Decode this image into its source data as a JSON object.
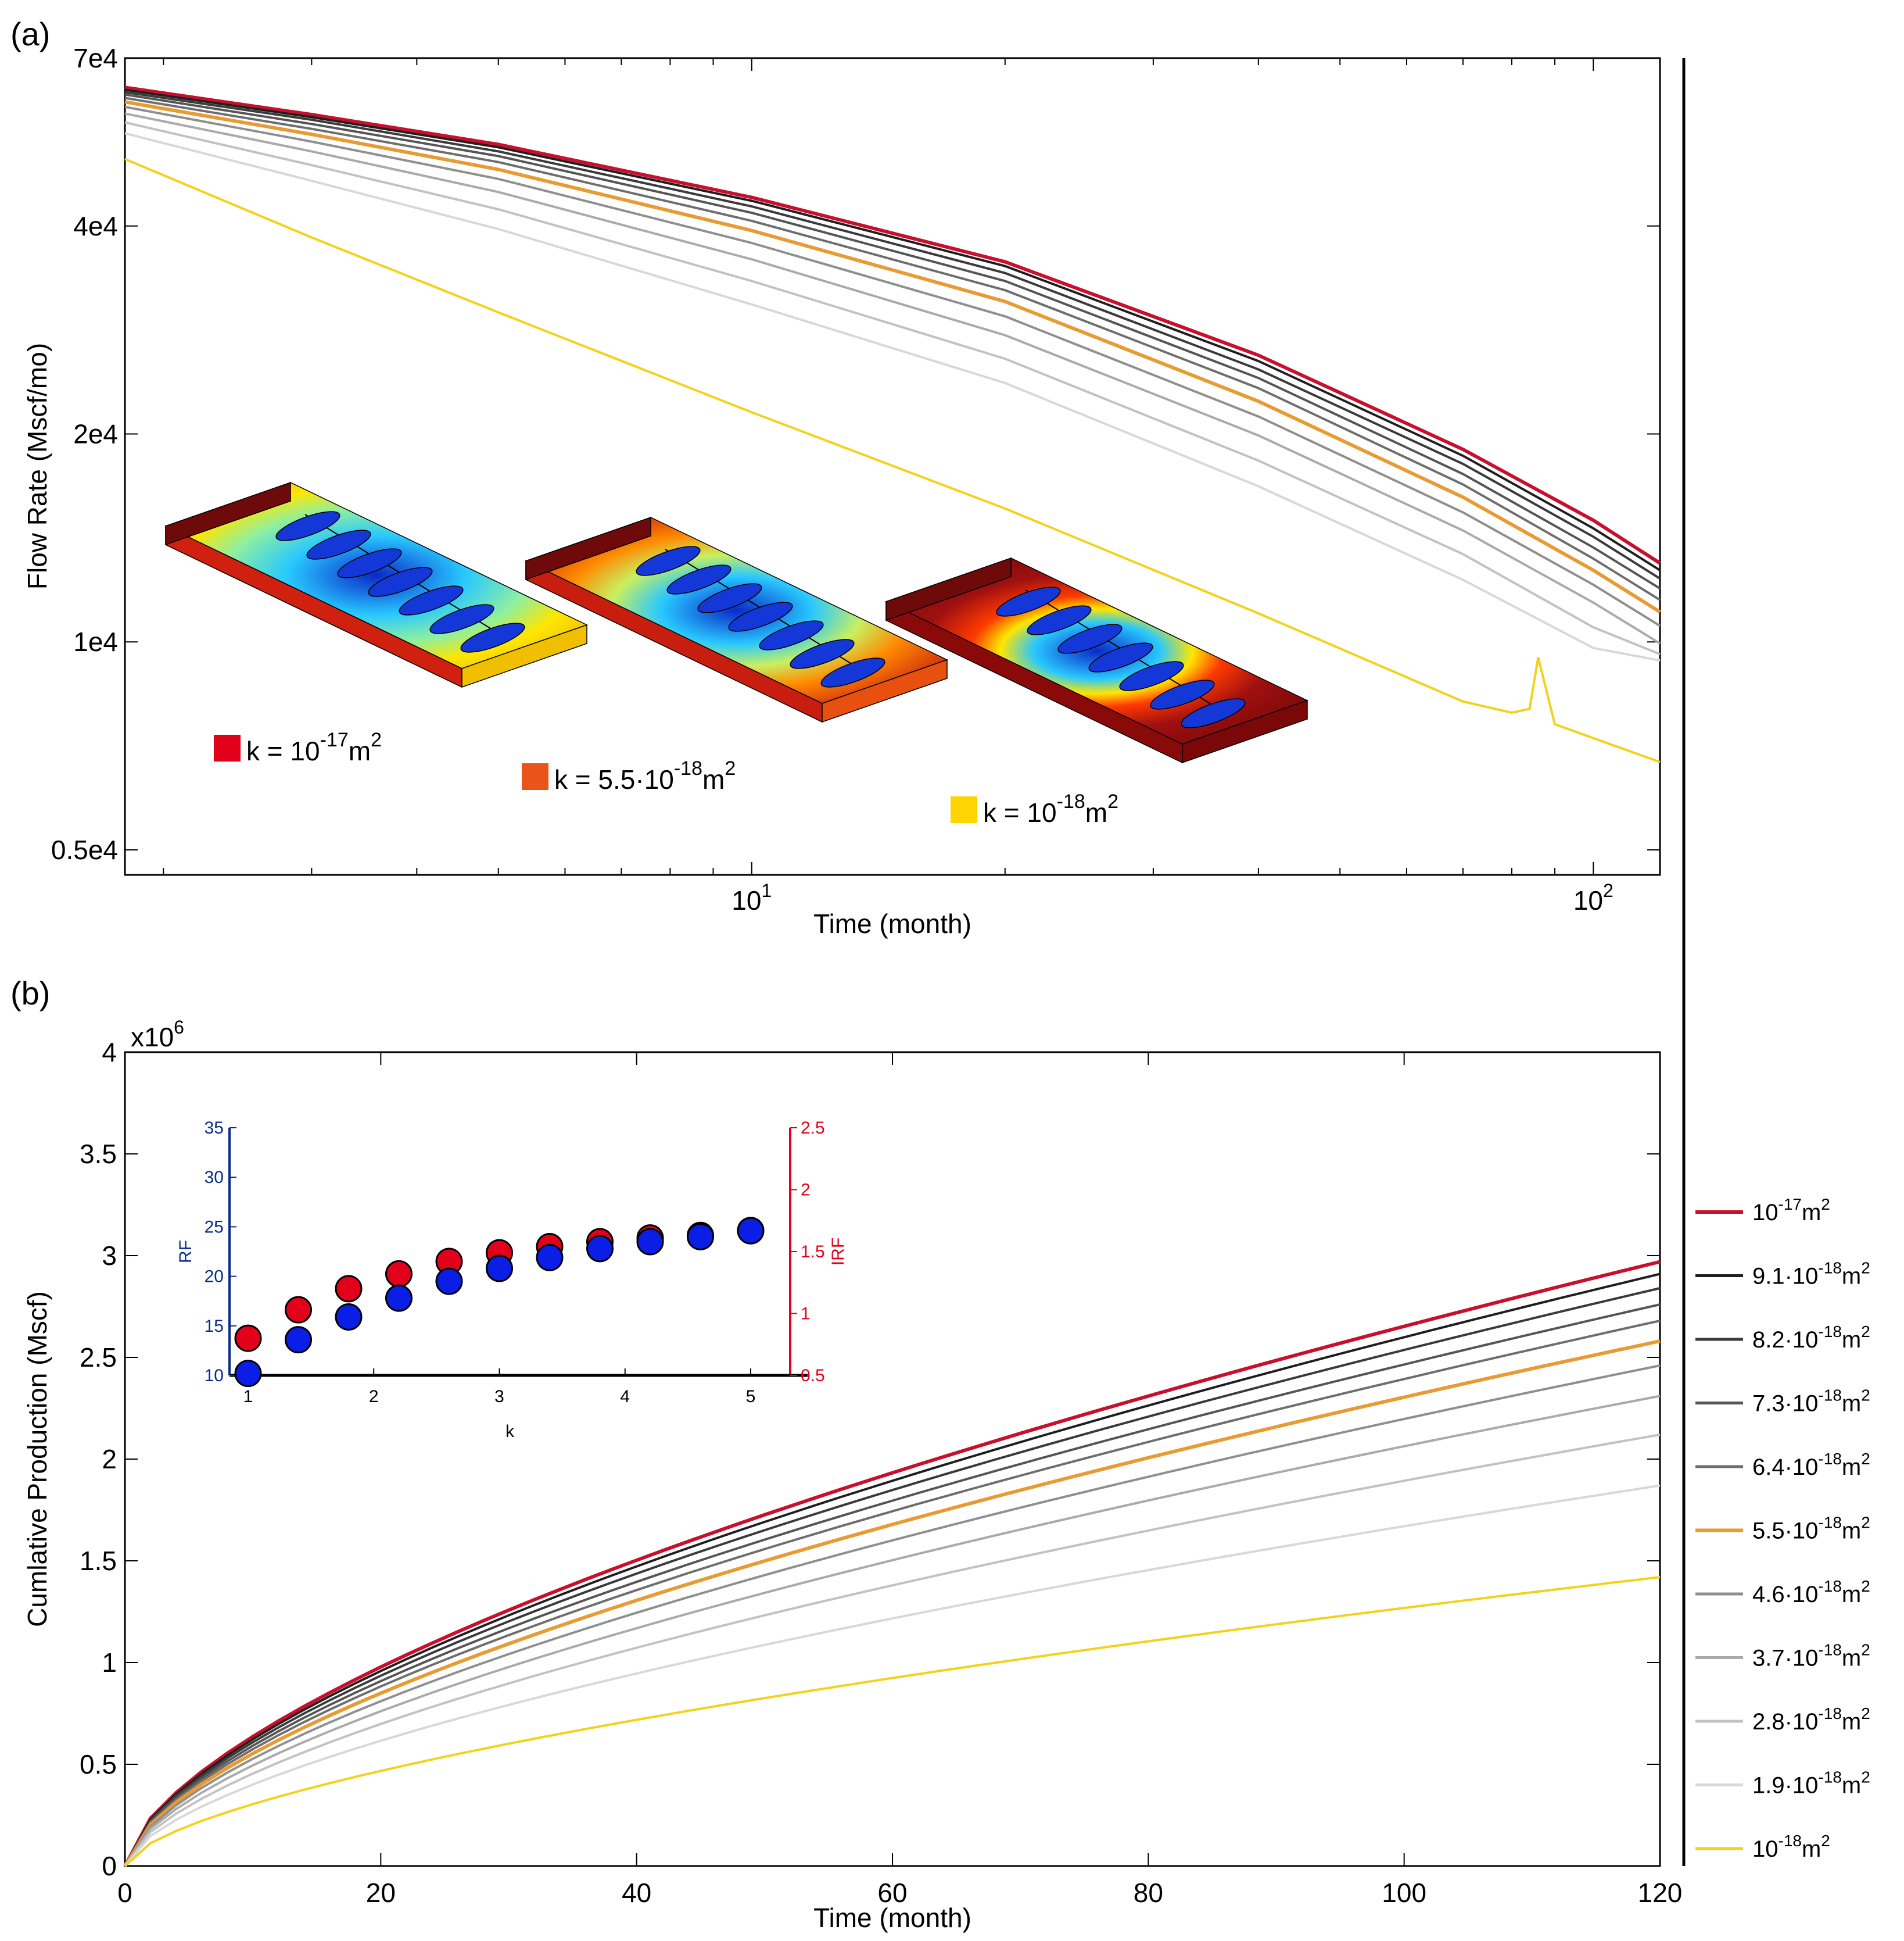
{
  "chart_data": [
    {
      "panel": "(a)",
      "type": "line",
      "xscale": "log",
      "yscale": "log",
      "xlabel": "Time (month)",
      "ylabel": "Flow Rate (Mscf/mo)",
      "xlim": [
        1.8,
        120
      ],
      "ylim": [
        4600,
        70000
      ],
      "xticks": [
        {
          "value": 10,
          "base": "10",
          "exp": "1"
        },
        {
          "value": 100,
          "base": "10",
          "exp": "2"
        }
      ],
      "yticks": [
        {
          "value": 5000,
          "label": "0.5e4"
        },
        {
          "value": 10000,
          "label": "1e4"
        },
        {
          "value": 20000,
          "label": "2e4"
        },
        {
          "value": 40000,
          "label": "4e4"
        },
        {
          "value": 70000,
          "label": "7e4"
        }
      ],
      "insets": [
        {
          "label_prefix": "k = ",
          "mantissa": "",
          "exp": "-17",
          "unit": "m",
          "unit_exp": "2",
          "swatch": "#e2001a"
        },
        {
          "label_prefix": "k = ",
          "mantissa": "5.5·",
          "exp": "-18",
          "unit": "m",
          "unit_exp": "2",
          "swatch": "#e8541a"
        },
        {
          "label_prefix": "k = ",
          "mantissa": "",
          "exp": "-18",
          "unit": "m",
          "unit_exp": "2",
          "swatch": "#ffd400"
        }
      ],
      "series": [
        {
          "name": "10^-17 m^2",
          "color": "#c8102e",
          "x": [
            1.8,
            3,
            5,
            10,
            20,
            40,
            70,
            100,
            120
          ],
          "y": [
            63500,
            58000,
            52500,
            44000,
            35500,
            26000,
            19000,
            15000,
            13000
          ]
        },
        {
          "name": "9.1·10^-18 m^2",
          "color": "#1e1e1e",
          "x": [
            1.8,
            3,
            5,
            10,
            20,
            40,
            70,
            100,
            120
          ],
          "y": [
            63000,
            57500,
            52000,
            43500,
            35000,
            25500,
            18600,
            14600,
            12700
          ]
        },
        {
          "name": "8.2·10^-18 m^2",
          "color": "#3a3a3a",
          "x": [
            1.8,
            3,
            5,
            10,
            20,
            40,
            70,
            100,
            120
          ],
          "y": [
            62500,
            57000,
            51300,
            42700,
            34200,
            24800,
            18100,
            14200,
            12350
          ]
        },
        {
          "name": "7.3·10^-18 m^2",
          "color": "#555555",
          "x": [
            1.8,
            3,
            5,
            10,
            20,
            40,
            70,
            100,
            120
          ],
          "y": [
            62000,
            56200,
            50500,
            41800,
            33300,
            24100,
            17500,
            13700,
            11950
          ]
        },
        {
          "name": "6.4·10^-18 m^2",
          "color": "#6e6e6e",
          "x": [
            1.8,
            3,
            5,
            10,
            20,
            40,
            70,
            100,
            120
          ],
          "y": [
            61300,
            55300,
            49500,
            40700,
            32300,
            23300,
            16900,
            13200,
            11500
          ]
        },
        {
          "name": "5.5·10^-18 m^2",
          "color": "#e89a33",
          "x": [
            1.8,
            3,
            5,
            10,
            20,
            40,
            70,
            100,
            120
          ],
          "y": [
            60500,
            54300,
            48300,
            39400,
            31100,
            22300,
            16200,
            12700,
            11050
          ]
        },
        {
          "name": "4.6·10^-18 m^2",
          "color": "#8f8f8f",
          "x": [
            1.8,
            3,
            5,
            10,
            20,
            40,
            70,
            100,
            120
          ],
          "y": [
            59500,
            53000,
            46800,
            37800,
            29600,
            21200,
            15400,
            12100,
            10550
          ]
        },
        {
          "name": "3.7·10^-18 m^2",
          "color": "#aaaaaa",
          "x": [
            1.8,
            3,
            5,
            10,
            20,
            40,
            70,
            100,
            120
          ],
          "y": [
            58200,
            51300,
            44800,
            35800,
            27800,
            19900,
            14500,
            11400,
            9950
          ]
        },
        {
          "name": "2.8·10^-18 m^2",
          "color": "#c2c2c2",
          "x": [
            1.8,
            3,
            5,
            10,
            20,
            40,
            70,
            100,
            120
          ],
          "y": [
            56500,
            49000,
            42300,
            33300,
            25700,
            18300,
            13400,
            10500,
            9600
          ]
        },
        {
          "name": "1.9·10^-18 m^2",
          "color": "#d8d8d8",
          "x": [
            1.8,
            3,
            5,
            10,
            20,
            40,
            70,
            100,
            120
          ],
          "y": [
            54500,
            46500,
            39600,
            30800,
            23700,
            16800,
            12300,
            9800,
            9400
          ]
        },
        {
          "name": "10^-18 m^2",
          "color": "#f2d21a",
          "x": [
            1.8,
            3,
            5,
            10,
            20,
            40,
            70,
            80,
            84,
            86,
            90,
            120
          ],
          "y": [
            50000,
            38500,
            30000,
            21500,
            15600,
            11000,
            8200,
            7900,
            8000,
            9500,
            7600,
            6700
          ]
        }
      ]
    },
    {
      "panel": "(b)",
      "type": "line",
      "xlabel": "Time (month)",
      "ylabel": "Cumlative Production  (Mscf)",
      "xlim": [
        0,
        120
      ],
      "ylim": [
        0,
        4
      ],
      "y_multiplier": {
        "base": "x10",
        "exp": "6"
      },
      "xticks": [
        0,
        20,
        40,
        60,
        80,
        100,
        120
      ],
      "yticks": [
        0,
        0.5,
        1,
        1.5,
        2,
        2.5,
        3,
        3.5,
        4
      ],
      "series_final_values": [
        2.97,
        2.91,
        2.84,
        2.76,
        2.68,
        2.58,
        2.46,
        2.31,
        2.12,
        1.87,
        1.42
      ],
      "inset": {
        "type": "scatter",
        "xlabel": "k",
        "ylabel_left": "RF",
        "ylabel_right": "IRF",
        "xticks": [
          1,
          2,
          3,
          4,
          5
        ],
        "y_left_ticks": [
          10,
          15,
          20,
          25,
          30,
          35
        ],
        "y_right_ticks": [
          0.5,
          1,
          1.5,
          2,
          2.5
        ],
        "y_left_lim": [
          10,
          35
        ],
        "y_right_lim": [
          0.5,
          2.5
        ],
        "x": [
          1.0,
          1.4,
          1.8,
          2.2,
          2.6,
          3.0,
          3.4,
          3.8,
          4.2,
          4.6,
          5.0
        ],
        "RF": [
          10.2,
          13.6,
          15.9,
          17.8,
          19.5,
          20.8,
          21.9,
          22.8,
          23.5,
          24.0,
          24.6
        ],
        "IRF": [
          0.8,
          1.03,
          1.2,
          1.32,
          1.42,
          1.49,
          1.54,
          1.58,
          1.61,
          1.63,
          1.67
        ],
        "RF_color": "#0a1ee6",
        "IRF_color": "#e2001a"
      }
    }
  ],
  "legend": {
    "entries": [
      {
        "mantissa": "",
        "exp": "-17",
        "unit": "m",
        "unit_exp": "2",
        "color": "#c8102e"
      },
      {
        "mantissa": "9.1·",
        "exp": "-18",
        "unit": "m",
        "unit_exp": "2",
        "color": "#1e1e1e"
      },
      {
        "mantissa": "8.2·",
        "exp": "-18",
        "unit": "m",
        "unit_exp": "2",
        "color": "#3a3a3a"
      },
      {
        "mantissa": "7.3·",
        "exp": "-18",
        "unit": "m",
        "unit_exp": "2",
        "color": "#555555"
      },
      {
        "mantissa": "6.4·",
        "exp": "-18",
        "unit": "m",
        "unit_exp": "2",
        "color": "#6e6e6e"
      },
      {
        "mantissa": "5.5·",
        "exp": "-18",
        "unit": "m",
        "unit_exp": "2",
        "color": "#e89a33"
      },
      {
        "mantissa": "4.6·",
        "exp": "-18",
        "unit": "m",
        "unit_exp": "2",
        "color": "#8f8f8f"
      },
      {
        "mantissa": "3.7·",
        "exp": "-18",
        "unit": "m",
        "unit_exp": "2",
        "color": "#aaaaaa"
      },
      {
        "mantissa": "2.8·",
        "exp": "-18",
        "unit": "m",
        "unit_exp": "2",
        "color": "#c2c2c2"
      },
      {
        "mantissa": "1.9·",
        "exp": "-18",
        "unit": "m",
        "unit_exp": "2",
        "color": "#d8d8d8"
      },
      {
        "mantissa": "",
        "exp": "-18",
        "unit": "m",
        "unit_exp": "2",
        "color": "#f2d21a"
      }
    ]
  }
}
